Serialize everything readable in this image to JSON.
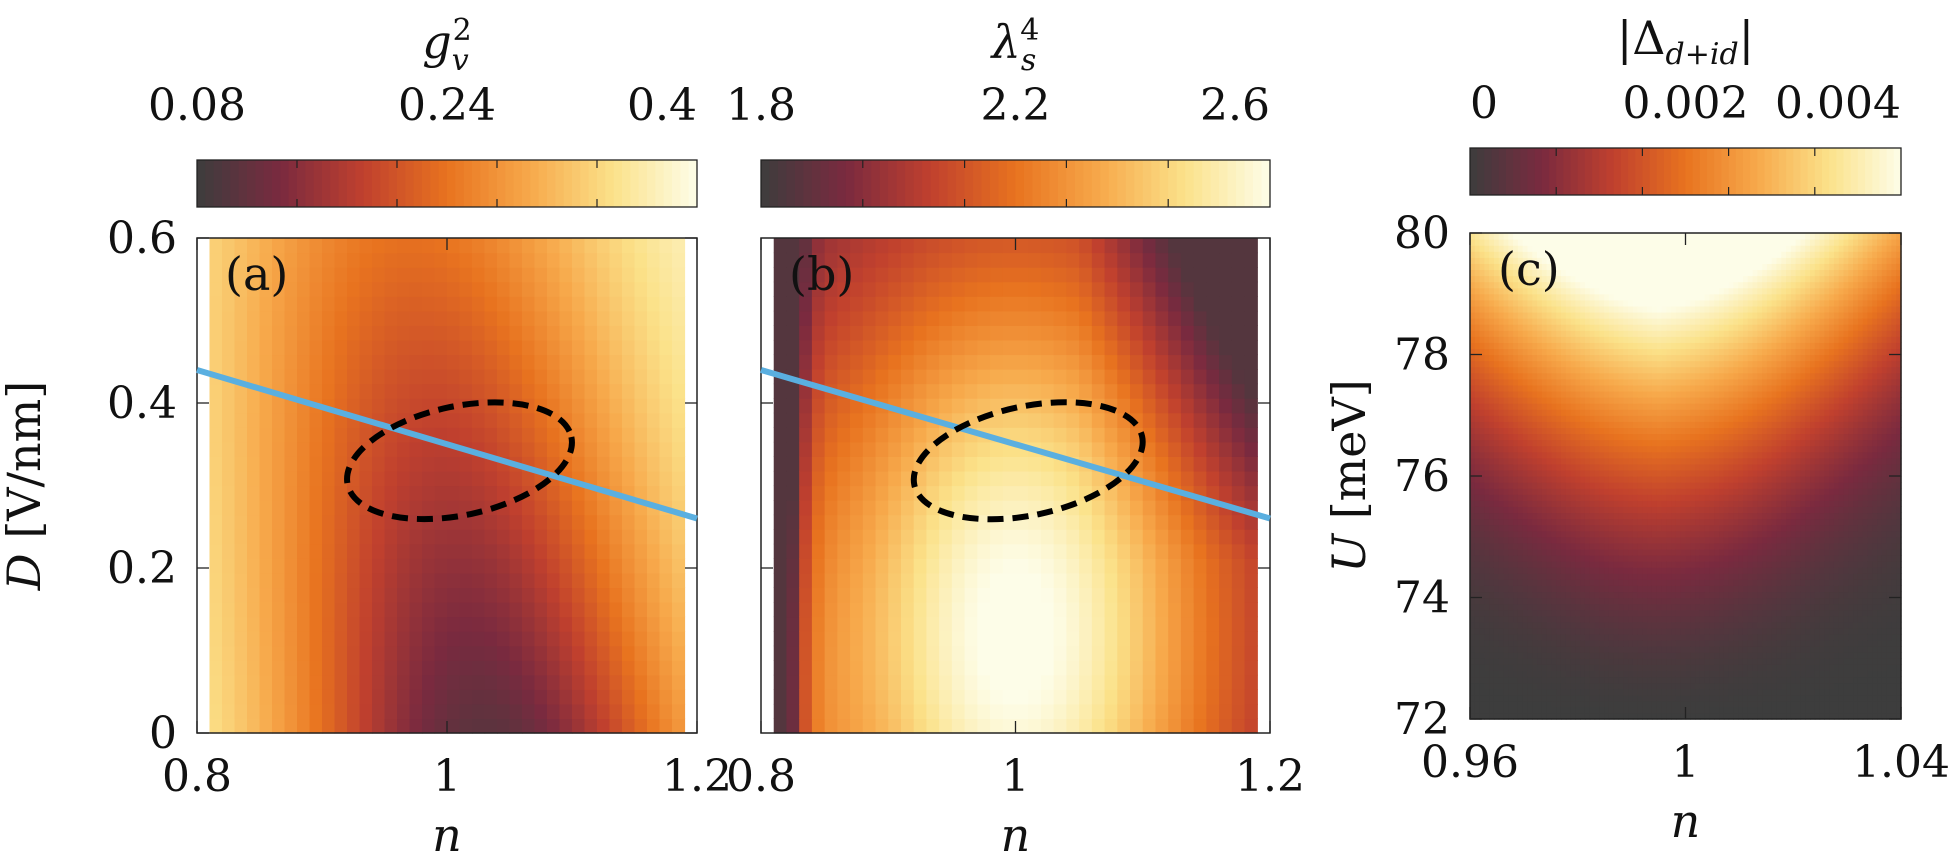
{
  "colormap": [
    "#3d3d3d",
    "#7a2a3f",
    "#c0402e",
    "#e8731f",
    "#f7a94b",
    "#fbe28a",
    "#fdfde8"
  ],
  "chart_data": [
    {
      "type": "heatmap",
      "panel_label": "(a)",
      "colorbar": {
        "title_base": "g",
        "title_sub": "v",
        "title_sup": "2",
        "ticks": [
          "0.08",
          "0.24",
          "0.4"
        ],
        "min": 0.08,
        "max": 0.4
      },
      "xlabel": "n",
      "ylabel": "D [V/nm]",
      "xlim": [
        0.8,
        1.2
      ],
      "ylim": [
        0,
        0.6
      ],
      "xticks": [
        "0.8",
        "1",
        "1.2"
      ],
      "yticks": [
        "0",
        "0.2",
        "0.4",
        "0.6"
      ],
      "grid_nx": 38,
      "grid_ny": 34,
      "data_x_range": [
        0.81,
        1.19
      ],
      "field": {
        "kind": "valley",
        "min_value": 0.09,
        "max_value": 0.4,
        "center_n": 1.03,
        "center_d": 0.08,
        "width_n": 0.17,
        "skew": 0.15
      },
      "line": {
        "color": "#5aafe0",
        "points": [
          [
            0.8,
            0.44
          ],
          [
            1.2,
            0.26
          ]
        ]
      },
      "ellipse": {
        "cx": 1.01,
        "cy": 0.33,
        "rx": 0.075,
        "ry": 0.075,
        "angle_deg": -12
      }
    },
    {
      "type": "heatmap",
      "panel_label": "(b)",
      "colorbar": {
        "title_base": "λ",
        "title_sub": "s",
        "title_sup": "4",
        "ticks": [
          "1.8",
          "2.2",
          "2.6"
        ],
        "min": 1.8,
        "max": 2.6
      },
      "xlabel": "n",
      "ylabel": "",
      "xlim": [
        0.8,
        1.2
      ],
      "ylim": [
        0,
        0.6
      ],
      "xticks": [
        "0.8",
        "1",
        "1.2"
      ],
      "yticks": [],
      "grid_nx": 38,
      "grid_ny": 34,
      "data_x_range": [
        0.81,
        1.19
      ],
      "field": {
        "kind": "peak",
        "min_value": 1.85,
        "max_value": 2.6,
        "center_n": 1.0,
        "center_d": 0.12,
        "width_n": 0.16
      },
      "line": {
        "color": "#5aafe0",
        "points": [
          [
            0.8,
            0.44
          ],
          [
            1.2,
            0.26
          ]
        ]
      },
      "ellipse": {
        "cx": 1.01,
        "cy": 0.33,
        "rx": 0.075,
        "ry": 0.075,
        "angle_deg": -12
      }
    },
    {
      "type": "heatmap",
      "panel_label": "(c)",
      "colorbar": {
        "title": "|Δd+id|",
        "title_base": "|Δ",
        "title_sub": "d+id",
        "title_end": "|",
        "ticks": [
          "0",
          "0.002",
          "0.004"
        ],
        "min": 0,
        "max": 0.004
      },
      "xlabel": "n",
      "ylabel": "U [meV]",
      "xlim": [
        0.96,
        1.04
      ],
      "ylim": [
        72,
        80
      ],
      "xticks": [
        "0.96",
        "1",
        "1.04"
      ],
      "yticks": [
        "72",
        "74",
        "76",
        "78",
        "80"
      ],
      "grid_nx": 90,
      "grid_ny": 80,
      "data_x_range": [
        0.96,
        1.04
      ],
      "field": {
        "kind": "fan",
        "min_value": 0,
        "max_value": 0.0042,
        "center_n": 0.995,
        "top_u": 80,
        "bottom_u": 72
      }
    }
  ]
}
